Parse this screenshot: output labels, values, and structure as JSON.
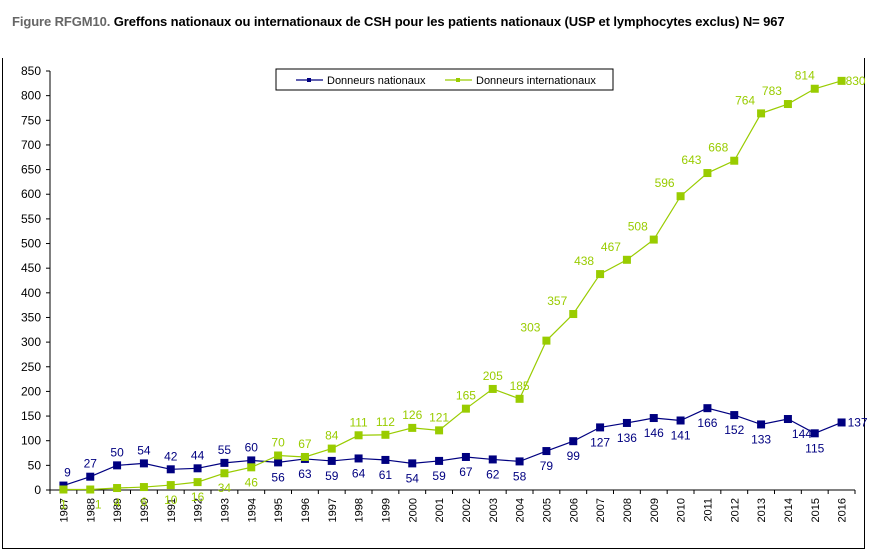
{
  "figure": {
    "prefix": "Figure RFGM10.",
    "title": " Greffons nationaux ou internationaux de CSH pour les patients nationaux (USP et lymphocytes exclus) N= 967"
  },
  "chart_data": {
    "type": "line",
    "title": "Figure RFGM10. Greffons nationaux ou internationaux de CSH pour les patients nationaux (USP et lymphocytes exclus) N= 967",
    "xlabel": "",
    "ylabel": "",
    "ylim": [
      0,
      850
    ],
    "yticks": [
      0,
      50,
      100,
      150,
      200,
      250,
      300,
      350,
      400,
      450,
      500,
      550,
      600,
      650,
      700,
      750,
      800,
      850
    ],
    "grid": false,
    "legend_position": "top-center",
    "x": [
      "1987",
      "1988",
      "1989",
      "1990",
      "1991",
      "1992",
      "1993",
      "1994",
      "1995",
      "1996",
      "1997",
      "1998",
      "1999",
      "2000",
      "2001",
      "2002",
      "2003",
      "2004",
      "2005",
      "2006",
      "2007",
      "2008",
      "2009",
      "2010",
      "2011",
      "2012",
      "2013",
      "2014",
      "2015",
      "2016"
    ],
    "series": [
      {
        "name": "Donneurs nationaux",
        "color": "#000080",
        "marker": "square",
        "values": [
          9,
          27,
          50,
          54,
          42,
          44,
          55,
          60,
          56,
          63,
          59,
          64,
          61,
          54,
          59,
          67,
          62,
          58,
          79,
          99,
          127,
          136,
          146,
          141,
          166,
          152,
          133,
          144,
          115,
          137
        ]
      },
      {
        "name": "Donneurs internationaux",
        "color": "#99cc00",
        "marker": "square",
        "values": [
          1,
          1,
          4,
          6,
          10,
          16,
          34,
          46,
          70,
          67,
          84,
          111,
          112,
          126,
          121,
          165,
          205,
          185,
          303,
          357,
          438,
          467,
          508,
          596,
          643,
          668,
          764,
          783,
          814,
          830
        ]
      }
    ]
  }
}
